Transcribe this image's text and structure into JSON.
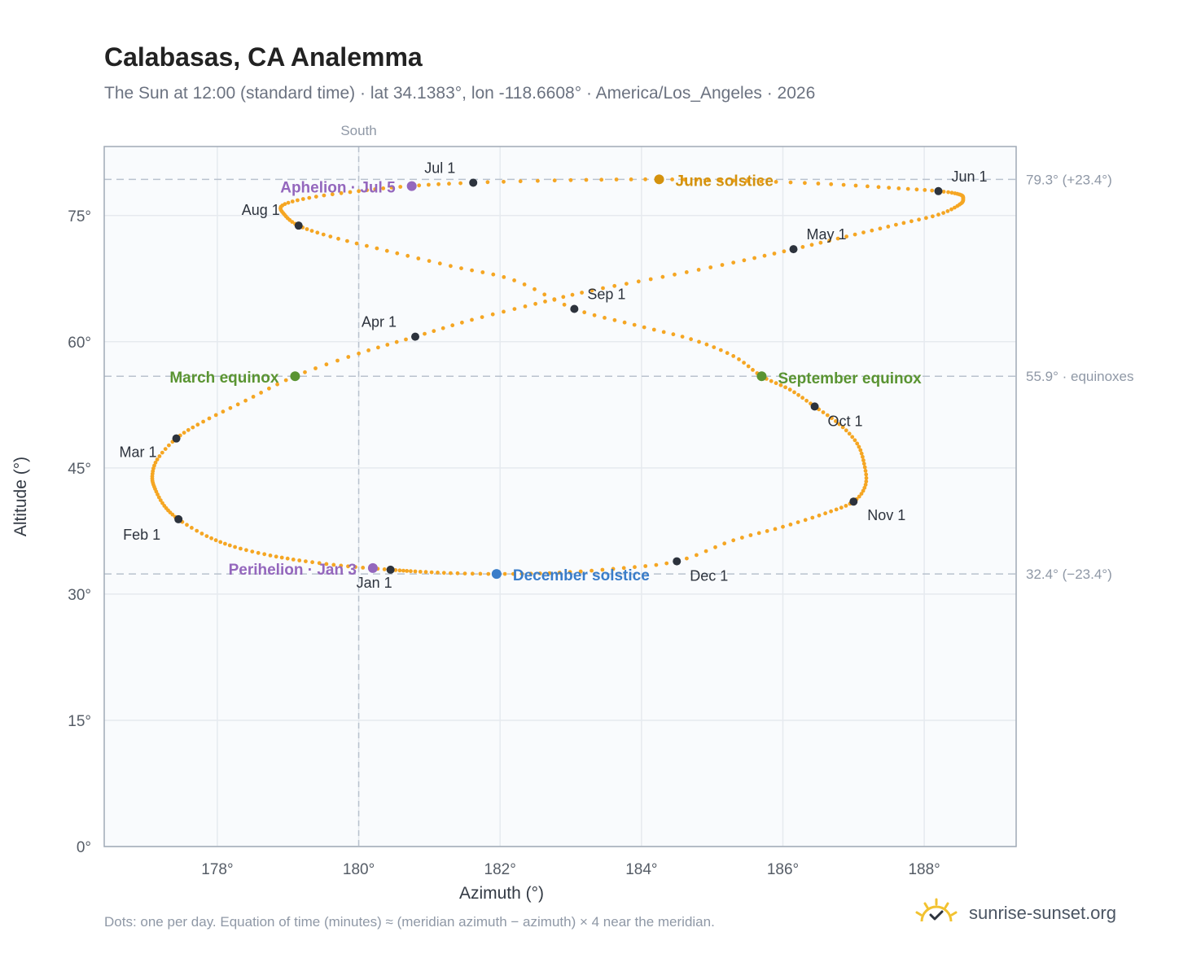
{
  "header": {
    "title": "Calabasas, CA Analemma",
    "subtitle": "The Sun at 12:00 (standard time) · lat 34.1383°, lon -118.6608° · America/Los_Angeles · 2026"
  },
  "footer": {
    "note": "Dots: one per day. Equation of time (minutes) ≈ (meridian azimuth − azimuth) × 4 near the meridian.",
    "brand": "sunrise-sunset.org"
  },
  "colors": {
    "track": "#f5a623",
    "month_marker": "#2d333d",
    "solstice_june": "#d4920e",
    "solstice_december": "#3a7dc9",
    "equinox": "#5a9432",
    "apsis": "#9467bd",
    "grid": "#e6eaef",
    "plot_background": "#f9fbfd",
    "plot_border": "#a0aab6",
    "reference_line": "#b9c2ce"
  },
  "chart_data": {
    "type": "scatter",
    "xlabel": "Azimuth (°)",
    "ylabel": "Altitude (°)",
    "xlim": [
      176.4,
      189.3
    ],
    "ylim": [
      0,
      83.2
    ],
    "x_ticks": [
      178,
      180,
      182,
      184,
      186,
      188
    ],
    "x_tick_labels": [
      "178°",
      "180°",
      "182°",
      "184°",
      "186°",
      "188°"
    ],
    "y_ticks": [
      0,
      15,
      30,
      45,
      60,
      75
    ],
    "y_tick_labels": [
      "0°",
      "15°",
      "30°",
      "45°",
      "60°",
      "75°"
    ],
    "grid": true,
    "south_line": {
      "azimuth": 180,
      "label": "South"
    },
    "reference_lines": [
      {
        "altitude": 79.3,
        "label": "79.3° (+23.4°)"
      },
      {
        "altitude": 55.9,
        "label": "55.9° · equinoxes"
      },
      {
        "altitude": 32.4,
        "label": "32.4° (−23.4°)"
      }
    ],
    "series": [
      {
        "name": "",
        "description_points": "daily sun position at 12:00, one per day",
        "points": [
          [
            180.45,
            32.9
          ],
          [
            179.85,
            33.3
          ],
          [
            179.25,
            33.9
          ],
          [
            178.75,
            34.6
          ],
          [
            178.25,
            35.6
          ],
          [
            177.85,
            36.9
          ],
          [
            177.45,
            38.9
          ],
          [
            177.25,
            40.5
          ],
          [
            177.12,
            42.5
          ],
          [
            177.08,
            44.0
          ],
          [
            177.15,
            46.0
          ],
          [
            177.42,
            48.5
          ],
          [
            177.8,
            50.5
          ],
          [
            178.4,
            53.0
          ],
          [
            179.1,
            55.9
          ],
          [
            180.0,
            58.6
          ],
          [
            180.8,
            60.6
          ],
          [
            181.6,
            62.6
          ],
          [
            182.5,
            64.5
          ],
          [
            183.3,
            66.1
          ],
          [
            184.3,
            67.7
          ],
          [
            185.3,
            69.4
          ],
          [
            186.15,
            71.0
          ],
          [
            186.9,
            72.5
          ],
          [
            187.6,
            73.9
          ],
          [
            188.2,
            75.1
          ],
          [
            188.5,
            76.3
          ],
          [
            188.55,
            77.0
          ],
          [
            188.5,
            77.5
          ],
          [
            188.2,
            77.9
          ],
          [
            187.5,
            78.3
          ],
          [
            186.5,
            78.8
          ],
          [
            185.3,
            79.15
          ],
          [
            184.25,
            79.3
          ],
          [
            183.0,
            79.2
          ],
          [
            181.62,
            78.9
          ],
          [
            180.72,
            78.5
          ],
          [
            180.0,
            77.9
          ],
          [
            179.3,
            77.1
          ],
          [
            178.92,
            76.2
          ],
          [
            178.95,
            75.1
          ],
          [
            179.15,
            73.8
          ],
          [
            179.6,
            72.5
          ],
          [
            180.4,
            70.8
          ],
          [
            181.3,
            69.0
          ],
          [
            182.2,
            67.3
          ],
          [
            183.05,
            63.9
          ],
          [
            183.9,
            62.0
          ],
          [
            184.7,
            60.3
          ],
          [
            185.3,
            58.3
          ],
          [
            185.7,
            55.9
          ],
          [
            186.1,
            54.3
          ],
          [
            186.45,
            52.3
          ],
          [
            186.8,
            50.2
          ],
          [
            187.05,
            47.9
          ],
          [
            187.15,
            45.5
          ],
          [
            187.17,
            43.0
          ],
          [
            187.0,
            41.0
          ],
          [
            186.6,
            39.6
          ],
          [
            186.0,
            38.0
          ],
          [
            185.3,
            36.4
          ],
          [
            184.5,
            33.9
          ],
          [
            183.6,
            33.0
          ],
          [
            182.7,
            32.5
          ],
          [
            181.95,
            32.4
          ],
          [
            181.3,
            32.5
          ],
          [
            180.8,
            32.7
          ],
          [
            180.45,
            32.9
          ]
        ]
      }
    ],
    "month_markers": [
      {
        "label": "Jan 1",
        "azimuth": 180.45,
        "altitude": 32.9
      },
      {
        "label": "Feb 1",
        "azimuth": 177.45,
        "altitude": 38.9
      },
      {
        "label": "Mar 1",
        "azimuth": 177.42,
        "altitude": 48.5
      },
      {
        "label": "Apr 1",
        "azimuth": 180.8,
        "altitude": 60.6
      },
      {
        "label": "May 1",
        "azimuth": 186.15,
        "altitude": 71.0
      },
      {
        "label": "Jun 1",
        "azimuth": 188.2,
        "altitude": 77.9
      },
      {
        "label": "Jul 1",
        "azimuth": 181.62,
        "altitude": 78.9
      },
      {
        "label": "Aug 1",
        "azimuth": 179.15,
        "altitude": 73.8
      },
      {
        "label": "Sep 1",
        "azimuth": 183.05,
        "altitude": 63.9
      },
      {
        "label": "Oct 1",
        "azimuth": 186.45,
        "altitude": 52.3
      },
      {
        "label": "Nov 1",
        "azimuth": 187.0,
        "altitude": 41.0
      },
      {
        "label": "Dec 1",
        "azimuth": 184.5,
        "altitude": 33.9
      }
    ],
    "events": [
      {
        "label": "June solstice",
        "azimuth": 184.25,
        "altitude": 79.3,
        "color": "#d4920e"
      },
      {
        "label": "December solstice",
        "azimuth": 181.95,
        "altitude": 32.4,
        "color": "#3a7dc9"
      },
      {
        "label": "March equinox",
        "azimuth": 179.1,
        "altitude": 55.9,
        "color": "#5a9432"
      },
      {
        "label": "September equinox",
        "azimuth": 185.7,
        "altitude": 55.9,
        "color": "#5a9432"
      },
      {
        "label": "Aphelion · Jul 5",
        "azimuth": 180.75,
        "altitude": 78.5,
        "color": "#9467bd"
      },
      {
        "label": "Perihelion · Jan 3",
        "azimuth": 180.2,
        "altitude": 33.1,
        "color": "#9467bd"
      }
    ]
  }
}
